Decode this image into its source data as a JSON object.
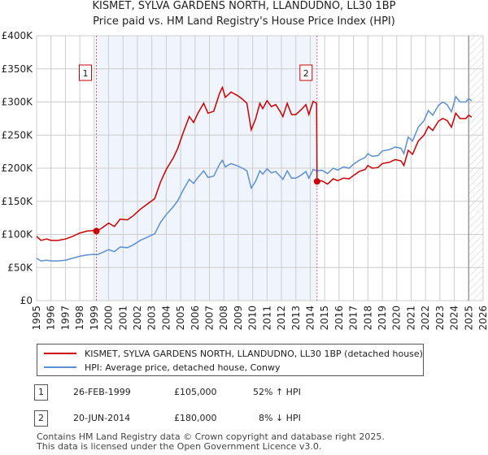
{
  "chart_data": {
    "type": "line",
    "title": "KISMET, SYLVA GARDENS NORTH, LLANDUDNO, LL30 1BP",
    "subtitle": "Price paid vs. HM Land Registry's House Price Index (HPI)",
    "xlim": [
      1995,
      2026
    ],
    "ylim": [
      0,
      400000
    ],
    "yticks": [
      {
        "v": 0,
        "label": "£0"
      },
      {
        "v": 50000,
        "label": "£50K"
      },
      {
        "v": 100000,
        "label": "£100K"
      },
      {
        "v": 150000,
        "label": "£150K"
      },
      {
        "v": 200000,
        "label": "£200K"
      },
      {
        "v": 250000,
        "label": "£250K"
      },
      {
        "v": 300000,
        "label": "£300K"
      },
      {
        "v": 350000,
        "label": "£350K"
      },
      {
        "v": 400000,
        "label": "£400K"
      }
    ],
    "xticks": [
      "1995",
      "1996",
      "1997",
      "1998",
      "1999",
      "2000",
      "2001",
      "2002",
      "2003",
      "2004",
      "2005",
      "2006",
      "2007",
      "2008",
      "2009",
      "2010",
      "2011",
      "2012",
      "2013",
      "2014",
      "2015",
      "2016",
      "2017",
      "2018",
      "2019",
      "2020",
      "2021",
      "2022",
      "2023",
      "2024",
      "2025",
      "2026"
    ],
    "grid": true,
    "shaded_range": [
      1999.15,
      2014.47
    ],
    "forecast_from": 2025.0,
    "series": [
      {
        "name": "KISMET, SYLVA GARDENS NORTH, LLANDUDNO, LL30 1BP (detached house)",
        "color": "#cc0000",
        "points": [
          [
            1995.0,
            97
          ],
          [
            1995.3,
            91
          ],
          [
            1995.7,
            93
          ],
          [
            1996.0,
            91
          ],
          [
            1996.5,
            91
          ],
          [
            1997.0,
            93
          ],
          [
            1997.5,
            97
          ],
          [
            1998.0,
            102
          ],
          [
            1998.5,
            105
          ],
          [
            1999.0,
            106
          ],
          [
            1999.15,
            105
          ],
          [
            1999.5,
            109
          ],
          [
            2000.0,
            117
          ],
          [
            2000.4,
            112
          ],
          [
            2000.8,
            123
          ],
          [
            2001.3,
            122
          ],
          [
            2001.7,
            128
          ],
          [
            2002.2,
            138
          ],
          [
            2002.7,
            146
          ],
          [
            2003.2,
            154
          ],
          [
            2003.6,
            179
          ],
          [
            2004.0,
            198
          ],
          [
            2004.5,
            216
          ],
          [
            2004.8,
            230
          ],
          [
            2005.2,
            255
          ],
          [
            2005.6,
            278
          ],
          [
            2005.9,
            269
          ],
          [
            2006.2,
            283
          ],
          [
            2006.6,
            298
          ],
          [
            2006.9,
            283
          ],
          [
            2007.3,
            286
          ],
          [
            2007.7,
            313
          ],
          [
            2007.9,
            322
          ],
          [
            2008.1,
            307
          ],
          [
            2008.5,
            315
          ],
          [
            2009.0,
            309
          ],
          [
            2009.3,
            304
          ],
          [
            2009.6,
            298
          ],
          [
            2009.9,
            258
          ],
          [
            2010.2,
            274
          ],
          [
            2010.5,
            298
          ],
          [
            2010.7,
            290
          ],
          [
            2011.0,
            302
          ],
          [
            2011.3,
            293
          ],
          [
            2011.6,
            296
          ],
          [
            2011.9,
            286
          ],
          [
            2012.1,
            278
          ],
          [
            2012.4,
            298
          ],
          [
            2012.7,
            281
          ],
          [
            2013.0,
            281
          ],
          [
            2013.4,
            289
          ],
          [
            2013.7,
            296
          ],
          [
            2013.9,
            281
          ],
          [
            2014.2,
            301
          ],
          [
            2014.44,
            298
          ],
          [
            2014.47,
            180
          ],
          [
            2014.8,
            181
          ],
          [
            2015.2,
            176
          ],
          [
            2015.6,
            184
          ],
          [
            2015.9,
            181
          ],
          [
            2016.3,
            185
          ],
          [
            2016.7,
            184
          ],
          [
            2017.0,
            189
          ],
          [
            2017.4,
            195
          ],
          [
            2017.8,
            198
          ],
          [
            2018.0,
            204
          ],
          [
            2018.3,
            200
          ],
          [
            2018.7,
            201
          ],
          [
            2019.0,
            207
          ],
          [
            2019.5,
            209
          ],
          [
            2019.9,
            213
          ],
          [
            2020.3,
            211
          ],
          [
            2020.5,
            204
          ],
          [
            2020.8,
            227
          ],
          [
            2021.1,
            221
          ],
          [
            2021.5,
            241
          ],
          [
            2021.9,
            250
          ],
          [
            2022.2,
            263
          ],
          [
            2022.5,
            257
          ],
          [
            2022.9,
            271
          ],
          [
            2023.2,
            275
          ],
          [
            2023.5,
            272
          ],
          [
            2023.8,
            262
          ],
          [
            2024.1,
            283
          ],
          [
            2024.4,
            275
          ],
          [
            2024.8,
            275
          ],
          [
            2025.0,
            280
          ],
          [
            2025.2,
            277
          ]
        ]
      },
      {
        "name": "HPI: Average price, detached house, Conwy",
        "color": "#5b8fd4",
        "points": [
          [
            1995.0,
            64
          ],
          [
            1995.3,
            60
          ],
          [
            1995.7,
            61
          ],
          [
            1996.0,
            60
          ],
          [
            1996.5,
            60
          ],
          [
            1997.0,
            61
          ],
          [
            1997.5,
            64
          ],
          [
            1998.0,
            67
          ],
          [
            1998.5,
            69
          ],
          [
            1999.0,
            70
          ],
          [
            1999.15,
            69
          ],
          [
            1999.5,
            72
          ],
          [
            2000.0,
            77
          ],
          [
            2000.4,
            74
          ],
          [
            2000.8,
            81
          ],
          [
            2001.3,
            80
          ],
          [
            2001.7,
            84
          ],
          [
            2002.2,
            91
          ],
          [
            2002.7,
            96
          ],
          [
            2003.2,
            101
          ],
          [
            2003.6,
            118
          ],
          [
            2004.0,
            130
          ],
          [
            2004.5,
            142
          ],
          [
            2004.8,
            151
          ],
          [
            2005.2,
            168
          ],
          [
            2005.6,
            183
          ],
          [
            2005.9,
            177
          ],
          [
            2006.2,
            186
          ],
          [
            2006.6,
            196
          ],
          [
            2006.9,
            186
          ],
          [
            2007.3,
            188
          ],
          [
            2007.7,
            206
          ],
          [
            2007.9,
            212
          ],
          [
            2008.1,
            202
          ],
          [
            2008.5,
            207
          ],
          [
            2009.0,
            203
          ],
          [
            2009.3,
            200
          ],
          [
            2009.6,
            196
          ],
          [
            2009.9,
            170
          ],
          [
            2010.2,
            180
          ],
          [
            2010.5,
            196
          ],
          [
            2010.7,
            191
          ],
          [
            2011.0,
            199
          ],
          [
            2011.3,
            193
          ],
          [
            2011.6,
            195
          ],
          [
            2011.9,
            188
          ],
          [
            2012.1,
            183
          ],
          [
            2012.4,
            196
          ],
          [
            2012.7,
            185
          ],
          [
            2013.0,
            185
          ],
          [
            2013.4,
            190
          ],
          [
            2013.7,
            195
          ],
          [
            2013.9,
            185
          ],
          [
            2014.2,
            198
          ],
          [
            2014.47,
            196
          ],
          [
            2014.8,
            197
          ],
          [
            2015.2,
            192
          ],
          [
            2015.6,
            200
          ],
          [
            2015.9,
            197
          ],
          [
            2016.3,
            202
          ],
          [
            2016.7,
            200
          ],
          [
            2017.0,
            206
          ],
          [
            2017.4,
            212
          ],
          [
            2017.8,
            216
          ],
          [
            2018.0,
            222
          ],
          [
            2018.3,
            218
          ],
          [
            2018.7,
            219
          ],
          [
            2019.0,
            226
          ],
          [
            2019.5,
            228
          ],
          [
            2019.9,
            232
          ],
          [
            2020.3,
            230
          ],
          [
            2020.5,
            222
          ],
          [
            2020.8,
            247
          ],
          [
            2021.1,
            241
          ],
          [
            2021.5,
            262
          ],
          [
            2021.9,
            272
          ],
          [
            2022.2,
            287
          ],
          [
            2022.5,
            280
          ],
          [
            2022.9,
            295
          ],
          [
            2023.2,
            300
          ],
          [
            2023.5,
            296
          ],
          [
            2023.8,
            285
          ],
          [
            2024.1,
            308
          ],
          [
            2024.4,
            300
          ],
          [
            2024.8,
            300
          ],
          [
            2025.0,
            305
          ],
          [
            2025.2,
            302
          ]
        ]
      }
    ],
    "units_note": "values in £K",
    "markers": [
      {
        "label": "1",
        "x": 1999.15,
        "y": 105000
      },
      {
        "label": "2",
        "x": 2014.47,
        "y": 180000
      }
    ]
  },
  "legend": {
    "red": "KISMET, SYLVA GARDENS NORTH, LLANDUDNO, LL30 1BP (detached house)",
    "blue": "HPI: Average price, detached house, Conwy"
  },
  "transactions": [
    {
      "num": "1",
      "date": "26-FEB-1999",
      "price": "£105,000",
      "hpi": "52% ↑ HPI"
    },
    {
      "num": "2",
      "date": "20-JUN-2014",
      "price": "£180,000",
      "hpi": "8% ↓ HPI"
    }
  ],
  "footer": [
    "Contains HM Land Registry data © Crown copyright and database right 2025.",
    "This data is licensed under the Open Government Licence v3.0."
  ]
}
